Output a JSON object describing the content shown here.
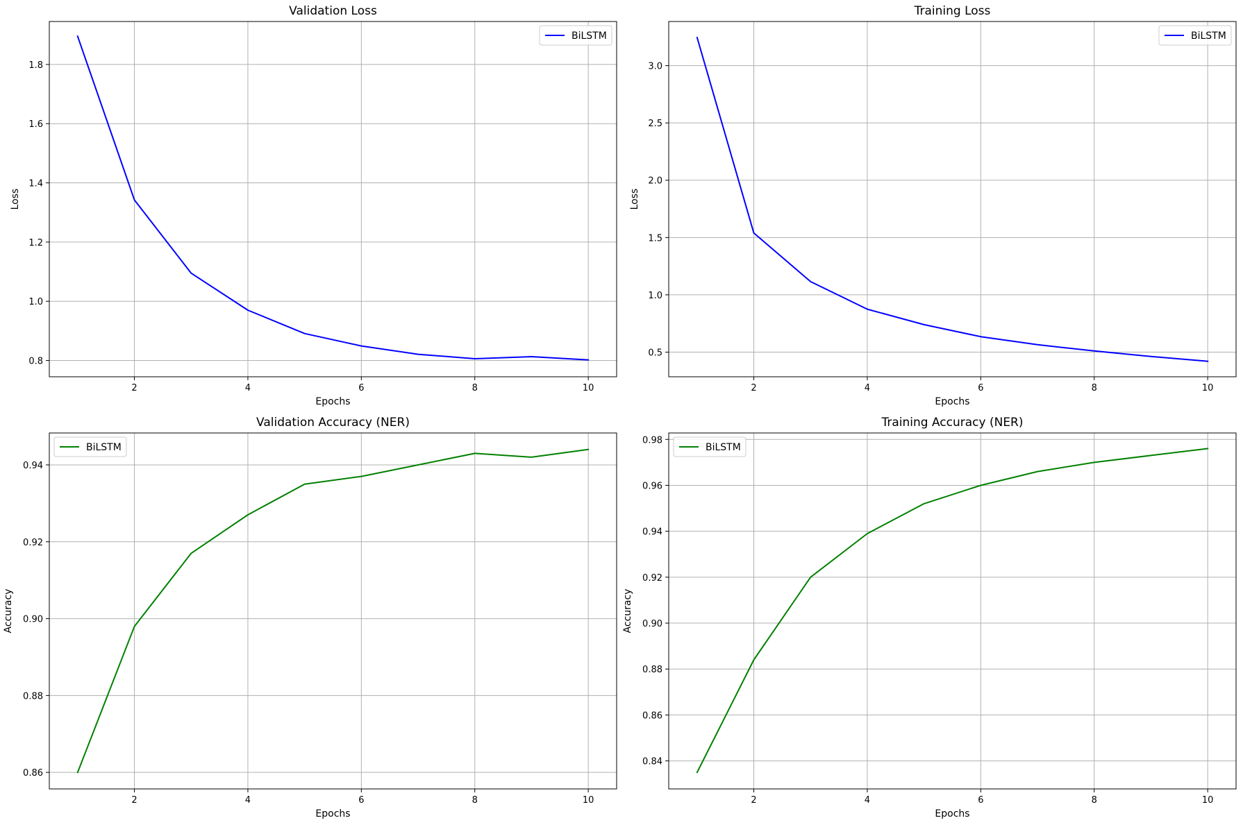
{
  "chart_data": [
    {
      "type": "line",
      "title": "Validation Loss",
      "xlabel": "Epochs",
      "ylabel": "Loss",
      "xlim": [
        0.5,
        10.5
      ],
      "ylim": [
        0.745,
        1.945
      ],
      "xticks": [
        2,
        4,
        6,
        8,
        10
      ],
      "yticks": [
        0.8,
        1.0,
        1.2,
        1.4,
        1.6,
        1.8
      ],
      "ytick_decimals": 1,
      "grid": true,
      "legend": "top-right",
      "x": [
        1,
        2,
        3,
        4,
        5,
        6,
        7,
        8,
        9,
        10
      ],
      "series": [
        {
          "name": "BiLSTM",
          "color": "#0000ff",
          "values": [
            1.895,
            1.342,
            1.095,
            0.97,
            0.891,
            0.849,
            0.821,
            0.806,
            0.813,
            0.802
          ]
        }
      ]
    },
    {
      "type": "line",
      "title": "Training Loss",
      "xlabel": "Epochs",
      "ylabel": "Loss",
      "xlim": [
        0.5,
        10.5
      ],
      "ylim": [
        0.285,
        3.385
      ],
      "xticks": [
        2,
        4,
        6,
        8,
        10
      ],
      "yticks": [
        0.5,
        1.0,
        1.5,
        2.0,
        2.5,
        3.0
      ],
      "ytick_decimals": 1,
      "grid": true,
      "legend": "top-right",
      "x": [
        1,
        2,
        3,
        4,
        5,
        6,
        7,
        8,
        9,
        10
      ],
      "series": [
        {
          "name": "BiLSTM",
          "color": "#0000ff",
          "values": [
            3.245,
            1.54,
            1.115,
            0.875,
            0.74,
            0.635,
            0.565,
            0.51,
            0.462,
            0.42
          ]
        }
      ]
    },
    {
      "type": "line",
      "title": "Validation Accuracy (NER)",
      "xlabel": "Epochs",
      "ylabel": "Accuracy",
      "xlim": [
        0.5,
        10.5
      ],
      "ylim": [
        0.8557,
        0.9483
      ],
      "xticks": [
        2,
        4,
        6,
        8,
        10
      ],
      "yticks": [
        0.86,
        0.88,
        0.9,
        0.92,
        0.94
      ],
      "ytick_decimals": 2,
      "grid": true,
      "legend": "top-left",
      "x": [
        1,
        2,
        3,
        4,
        5,
        6,
        7,
        8,
        9,
        10
      ],
      "series": [
        {
          "name": "BiLSTM",
          "color": "#008000",
          "values": [
            0.86,
            0.898,
            0.917,
            0.927,
            0.935,
            0.937,
            0.94,
            0.943,
            0.942,
            0.944
          ]
        }
      ]
    },
    {
      "type": "line",
      "title": "Training Accuracy (NER)",
      "xlabel": "Epochs",
      "ylabel": "Accuracy",
      "xlim": [
        0.5,
        10.5
      ],
      "ylim": [
        0.8278,
        0.9828
      ],
      "xticks": [
        2,
        4,
        6,
        8,
        10
      ],
      "yticks": [
        0.84,
        0.86,
        0.88,
        0.9,
        0.92,
        0.94,
        0.96,
        0.98
      ],
      "ytick_decimals": 2,
      "grid": true,
      "legend": "top-left",
      "x": [
        1,
        2,
        3,
        4,
        5,
        6,
        7,
        8,
        9,
        10
      ],
      "series": [
        {
          "name": "BiLSTM",
          "color": "#008000",
          "values": [
            0.835,
            0.884,
            0.92,
            0.939,
            0.952,
            0.96,
            0.966,
            0.97,
            0.973,
            0.976
          ]
        }
      ]
    }
  ]
}
